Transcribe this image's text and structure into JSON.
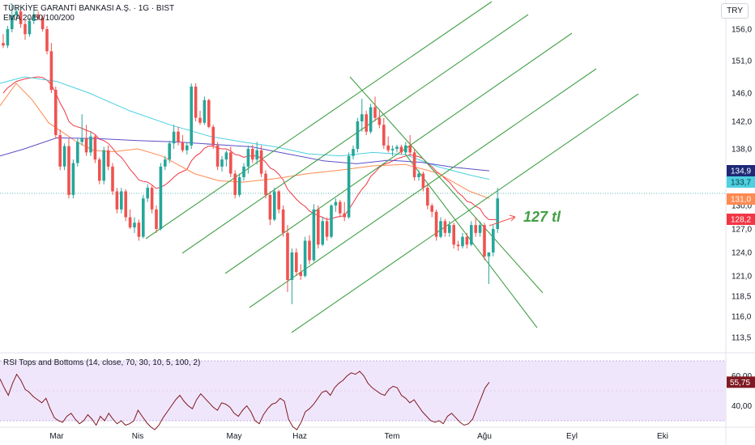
{
  "header": {
    "title": "TÜRKİYE GARANTİ BANKASI A.Ş. · 1G · BIST",
    "ema_label": "EMA 20/50/100/200",
    "currency": "TRY"
  },
  "rsi_panel": {
    "label": "RSI Tops and Bottoms (14, close, 70, 30, 10, 5, 100, 2)",
    "ticks": [
      "60,00",
      "40,00"
    ],
    "tick_values": [
      60,
      40
    ],
    "current": "55,75",
    "current_value": 55.75
  },
  "annotation": {
    "text": "127 tl",
    "color": "#43a047"
  },
  "colors": {
    "up": "#26a69a",
    "down": "#ef5350",
    "ema20": "#f23645",
    "ema50": "#ff8a50",
    "ema100": "#4dd0e1",
    "ema200": "#5b4fc9",
    "channel": "#43a047",
    "rsi": "#801922",
    "rsi_band": "#f0e6fb"
  },
  "chart_data": {
    "type": "candlestick",
    "y_ticks": [
      "156,0",
      "151,0",
      "146,0",
      "142,0",
      "138,0",
      "130,0",
      "127,0",
      "124,0",
      "121,0",
      "118,5",
      "116,0",
      "113,5"
    ],
    "y_tick_values": [
      156,
      151,
      146,
      142,
      138,
      130,
      127,
      124,
      121,
      118.5,
      116,
      113.5
    ],
    "x_ticks": [
      "Mar",
      "Nis",
      "May",
      "Haz",
      "Tem",
      "Ağu",
      "Eyl",
      "Eki"
    ],
    "price_labels": [
      {
        "text": "134,9",
        "value": 134.9,
        "color": "#1e2a78"
      },
      {
        "text": "133,7",
        "value": 133.7,
        "color": "#4dd0e1"
      },
      {
        "text": "131,0",
        "value": 131.0,
        "color": "#ff8a50"
      },
      {
        "text": "128,2",
        "value": 128.2,
        "color": "#f23645"
      }
    ],
    "last_price": 131.0,
    "ohlc": [
      [
        153.8,
        155.2,
        153.0,
        153.4
      ],
      [
        153.4,
        156.5,
        153.0,
        156.0
      ],
      [
        156.0,
        160.0,
        155.5,
        158.2
      ],
      [
        158.2,
        159.5,
        157.3,
        158.8
      ],
      [
        158.8,
        159.0,
        156.2,
        156.8
      ],
      [
        156.8,
        157.4,
        154.3,
        155.2
      ],
      [
        155.2,
        157.8,
        154.8,
        157.3
      ],
      [
        157.3,
        159.0,
        156.8,
        158.3
      ],
      [
        158.3,
        158.8,
        157.4,
        157.8
      ],
      [
        157.8,
        158.2,
        155.6,
        156.0
      ],
      [
        156.0,
        156.5,
        152.0,
        152.5
      ],
      [
        152.5,
        153.8,
        146.0,
        146.5
      ],
      [
        146.5,
        147.0,
        139.5,
        140.0
      ],
      [
        140.0,
        140.8,
        135.0,
        135.5
      ],
      [
        135.5,
        138.8,
        135.0,
        138.4
      ],
      [
        138.4,
        139.5,
        131.0,
        131.5
      ],
      [
        131.5,
        136.5,
        131.0,
        136.0
      ],
      [
        136.0,
        139.5,
        135.5,
        139.0
      ],
      [
        139.0,
        143.0,
        138.5,
        139.5
      ],
      [
        139.5,
        141.5,
        137.0,
        137.5
      ],
      [
        137.5,
        140.5,
        137.0,
        139.8
      ],
      [
        139.8,
        140.0,
        136.0,
        136.5
      ],
      [
        136.5,
        136.8,
        133.0,
        133.5
      ],
      [
        133.5,
        138.3,
        133.0,
        137.8
      ],
      [
        137.8,
        138.5,
        135.0,
        135.5
      ],
      [
        135.5,
        136.0,
        131.5,
        132.0
      ],
      [
        132.0,
        132.5,
        129.0,
        129.5
      ],
      [
        129.5,
        132.5,
        129.0,
        132.0
      ],
      [
        132.0,
        132.3,
        128.0,
        128.5
      ],
      [
        128.5,
        129.5,
        127.0,
        127.2
      ],
      [
        127.2,
        128.5,
        126.5,
        127.8
      ],
      [
        127.8,
        128.2,
        125.5,
        126.0
      ],
      [
        126.0,
        131.5,
        125.8,
        131.0
      ],
      [
        131.0,
        133.0,
        130.5,
        132.5
      ],
      [
        132.5,
        132.8,
        129.0,
        129.5
      ],
      [
        129.5,
        130.0,
        126.5,
        127.0
      ],
      [
        127.0,
        136.0,
        126.8,
        135.5
      ],
      [
        135.5,
        137.0,
        135.0,
        136.5
      ],
      [
        136.5,
        139.2,
        136.0,
        138.8
      ],
      [
        138.8,
        141.5,
        138.0,
        140.5
      ],
      [
        140.5,
        141.2,
        138.5,
        139.0
      ],
      [
        139.0,
        140.0,
        137.5,
        137.8
      ],
      [
        137.8,
        139.0,
        137.2,
        138.5
      ],
      [
        138.5,
        147.5,
        138.0,
        147.0
      ],
      [
        147.0,
        147.5,
        142.0,
        142.5
      ],
      [
        142.5,
        143.5,
        141.5,
        141.8
      ],
      [
        141.8,
        145.5,
        141.5,
        145.0
      ],
      [
        145.0,
        145.2,
        141.0,
        141.2
      ],
      [
        141.2,
        141.5,
        138.0,
        138.5
      ],
      [
        138.5,
        139.0,
        135.0,
        135.5
      ],
      [
        135.5,
        137.0,
        134.8,
        136.5
      ],
      [
        136.5,
        137.8,
        135.5,
        137.5
      ],
      [
        137.5,
        138.3,
        134.0,
        134.5
      ],
      [
        134.5,
        135.0,
        131.0,
        131.5
      ],
      [
        131.5,
        134.5,
        131.2,
        134.0
      ],
      [
        134.0,
        136.0,
        133.5,
        135.5
      ],
      [
        135.5,
        138.5,
        134.5,
        138.0
      ],
      [
        138.0,
        138.6,
        136.0,
        136.5
      ],
      [
        136.5,
        139.0,
        135.8,
        137.8
      ],
      [
        137.8,
        138.5,
        134.0,
        134.5
      ],
      [
        134.5,
        135.0,
        131.0,
        131.5
      ],
      [
        131.5,
        132.0,
        127.5,
        128.2
      ],
      [
        128.2,
        132.5,
        128.0,
        132.0
      ],
      [
        132.0,
        132.2,
        129.0,
        129.5
      ],
      [
        129.5,
        130.0,
        126.0,
        126.5
      ],
      [
        126.5,
        127.5,
        119.0,
        120.5
      ],
      [
        120.5,
        124.5,
        117.5,
        124.0
      ],
      [
        124.0,
        124.5,
        121.0,
        121.5
      ],
      [
        121.5,
        122.5,
        120.5,
        121.0
      ],
      [
        121.0,
        126.0,
        120.8,
        125.5
      ],
      [
        125.5,
        126.2,
        122.5,
        123.0
      ],
      [
        123.0,
        130.2,
        122.8,
        129.5
      ],
      [
        129.5,
        130.0,
        124.5,
        125.0
      ],
      [
        125.0,
        128.5,
        124.8,
        128.0
      ],
      [
        128.0,
        128.5,
        125.5,
        126.0
      ],
      [
        126.0,
        130.2,
        125.8,
        130.0
      ],
      [
        130.0,
        131.0,
        129.2,
        130.5
      ],
      [
        130.5,
        130.8,
        128.5,
        129.0
      ],
      [
        129.0,
        130.5,
        128.0,
        128.5
      ],
      [
        128.5,
        137.5,
        128.3,
        137.0
      ],
      [
        137.0,
        138.5,
        136.5,
        138.0
      ],
      [
        138.0,
        142.5,
        137.5,
        142.0
      ],
      [
        142.0,
        145.2,
        140.5,
        143.0
      ],
      [
        143.0,
        143.5,
        140.0,
        140.5
      ],
      [
        140.5,
        144.5,
        140.2,
        144.0
      ],
      [
        144.0,
        145.5,
        142.0,
        142.5
      ],
      [
        142.5,
        143.5,
        141.0,
        141.5
      ],
      [
        141.5,
        142.5,
        138.0,
        138.5
      ],
      [
        138.5,
        139.8,
        137.5,
        137.8
      ],
      [
        137.8,
        138.5,
        137.0,
        138.0
      ],
      [
        138.0,
        138.6,
        137.5,
        138.3
      ],
      [
        138.3,
        138.6,
        137.2,
        137.5
      ],
      [
        137.5,
        139.0,
        137.3,
        138.5
      ],
      [
        138.5,
        140.0,
        137.0,
        137.5
      ],
      [
        137.5,
        138.0,
        133.5,
        134.0
      ],
      [
        134.0,
        135.0,
        133.5,
        134.5
      ],
      [
        134.5,
        134.8,
        132.0,
        132.5
      ],
      [
        132.5,
        133.0,
        129.5,
        130.0
      ],
      [
        130.0,
        130.3,
        128.5,
        129.2
      ],
      [
        129.2,
        129.5,
        125.5,
        126.0
      ],
      [
        126.0,
        128.5,
        125.8,
        128.0
      ],
      [
        128.0,
        128.3,
        126.0,
        126.5
      ],
      [
        126.5,
        128.0,
        126.0,
        127.5
      ],
      [
        127.5,
        127.8,
        124.5,
        125.0
      ],
      [
        125.0,
        125.5,
        124.2,
        124.8
      ],
      [
        124.8,
        126.5,
        124.5,
        126.0
      ],
      [
        126.0,
        126.5,
        124.5,
        125.0
      ],
      [
        125.0,
        128.0,
        124.8,
        127.5
      ],
      [
        127.5,
        128.5,
        126.0,
        126.5
      ],
      [
        126.5,
        128.0,
        126.0,
        127.5
      ],
      [
        127.5,
        127.8,
        123.0,
        123.5
      ],
      [
        123.5,
        124.0,
        120.0,
        124.0
      ],
      [
        124.0,
        127.5,
        123.5,
        127.0
      ],
      [
        127.0,
        132.5,
        126.5,
        131.0
      ]
    ],
    "ema20": [
      146,
      146.8,
      147.3,
      147.8,
      148.0,
      148.2,
      148.3,
      148.4,
      148.5,
      148.4,
      148.0,
      147.3,
      146.0,
      144.6,
      143.5,
      142.0,
      141.4,
      141.2,
      141.0,
      140.7,
      140.5,
      140.1,
      139.4,
      139.2,
      138.8,
      138.1,
      137.3,
      136.8,
      136.0,
      135.1,
      134.4,
      133.6,
      133.4,
      133.3,
      132.9,
      132.4,
      132.6,
      132.9,
      133.4,
      134.0,
      134.5,
      134.8,
      135.1,
      136.3,
      137.0,
      137.4,
      138.1,
      138.4,
      138.4,
      138.1,
      138.0,
      138.0,
      137.7,
      137.2,
      137.1,
      136.8,
      137.0,
      137.0,
      137.0,
      136.7,
      136.1,
      135.3,
      135.0,
      134.4,
      133.6,
      132.3,
      131.6,
      130.9,
      130.3,
      129.9,
      129.3,
      129.0,
      128.7,
      128.5,
      128.2,
      128.3,
      128.5,
      128.6,
      128.7,
      129.5,
      130.4,
      131.4,
      132.3,
      133.0,
      134.1,
      134.7,
      135.4,
      135.8,
      136.0,
      136.3,
      136.6,
      136.8,
      137.0,
      137.2,
      137.0,
      136.9,
      136.6,
      136.0,
      135.5,
      134.8,
      134.4,
      133.8,
      133.3,
      132.5,
      131.8,
      131.3,
      130.6,
      130.4,
      129.9,
      129.6,
      128.7,
      128.2,
      128.2,
      128.2
    ]
  }
}
